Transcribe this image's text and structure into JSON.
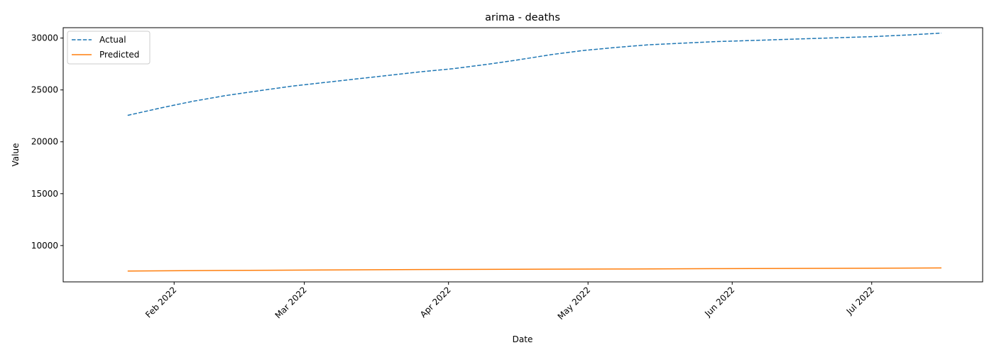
{
  "chart_data": {
    "type": "line",
    "title": "arima - deaths",
    "xlabel": "Date",
    "ylabel": "Value",
    "x_range": [
      "2022-01-17",
      "2022-07-16"
    ],
    "ylim": [
      6500,
      31000
    ],
    "y_ticks": [
      10000,
      15000,
      20000,
      25000,
      30000
    ],
    "x_ticks": [
      {
        "date": "2022-02-01",
        "label": "Feb 2022"
      },
      {
        "date": "2022-03-01",
        "label": "Mar 2022"
      },
      {
        "date": "2022-04-01",
        "label": "Apr 2022"
      },
      {
        "date": "2022-05-01",
        "label": "May 2022"
      },
      {
        "date": "2022-06-01",
        "label": "Jun 2022"
      },
      {
        "date": "2022-07-01",
        "label": "Jul 2022"
      }
    ],
    "grid": false,
    "legend_position": "top-left",
    "series": [
      {
        "name": "Actual",
        "style": "dashed",
        "color": "#1f77b4",
        "points": [
          {
            "x": "2022-01-22",
            "y": 22550
          },
          {
            "x": "2022-01-29",
            "y": 23250
          },
          {
            "x": "2022-02-05",
            "y": 23900
          },
          {
            "x": "2022-02-12",
            "y": 24450
          },
          {
            "x": "2022-02-19",
            "y": 24900
          },
          {
            "x": "2022-02-26",
            "y": 25350
          },
          {
            "x": "2022-03-05",
            "y": 25700
          },
          {
            "x": "2022-03-12",
            "y": 26050
          },
          {
            "x": "2022-03-19",
            "y": 26400
          },
          {
            "x": "2022-03-26",
            "y": 26750
          },
          {
            "x": "2022-04-02",
            "y": 27050
          },
          {
            "x": "2022-04-09",
            "y": 27450
          },
          {
            "x": "2022-04-16",
            "y": 27900
          },
          {
            "x": "2022-04-23",
            "y": 28400
          },
          {
            "x": "2022-04-30",
            "y": 28800
          },
          {
            "x": "2022-05-07",
            "y": 29100
          },
          {
            "x": "2022-05-14",
            "y": 29350
          },
          {
            "x": "2022-05-21",
            "y": 29500
          },
          {
            "x": "2022-05-28",
            "y": 29650
          },
          {
            "x": "2022-06-04",
            "y": 29750
          },
          {
            "x": "2022-06-11",
            "y": 29850
          },
          {
            "x": "2022-06-18",
            "y": 29950
          },
          {
            "x": "2022-06-25",
            "y": 30050
          },
          {
            "x": "2022-07-02",
            "y": 30150
          },
          {
            "x": "2022-07-09",
            "y": 30300
          },
          {
            "x": "2022-07-16",
            "y": 30480
          }
        ]
      },
      {
        "name": "Predicted",
        "style": "solid",
        "color": "#ff7f0e",
        "points": [
          {
            "x": "2022-01-22",
            "y": 7550
          },
          {
            "x": "2022-02-12",
            "y": 7600
          },
          {
            "x": "2022-03-05",
            "y": 7650
          },
          {
            "x": "2022-03-26",
            "y": 7690
          },
          {
            "x": "2022-04-16",
            "y": 7720
          },
          {
            "x": "2022-05-07",
            "y": 7740
          },
          {
            "x": "2022-05-28",
            "y": 7770
          },
          {
            "x": "2022-06-18",
            "y": 7800
          },
          {
            "x": "2022-07-16",
            "y": 7840
          }
        ]
      }
    ]
  }
}
